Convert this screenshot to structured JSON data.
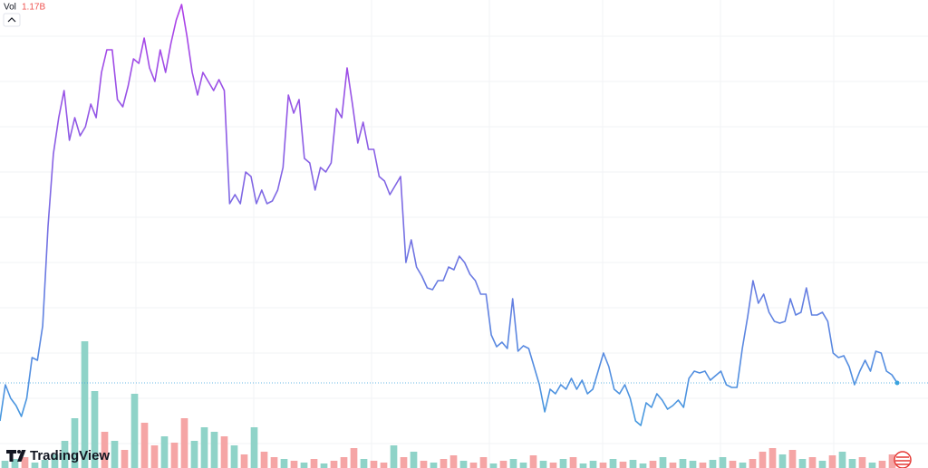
{
  "header": {
    "volume_label": "Vol",
    "volume_value": "1.17B",
    "watermark": "TradingView"
  },
  "chart_data": {
    "type": "line",
    "ylim": [
      0,
      517
    ],
    "colors": [
      "#b03ee8",
      "#3aa3de"
    ],
    "last_price_line_color": "#3aa3de",
    "values": [
      52,
      92,
      77,
      69,
      57,
      77,
      122,
      119,
      157,
      267,
      347,
      387,
      417,
      362,
      387,
      367,
      377,
      402,
      387,
      437,
      462,
      462,
      407,
      399,
      422,
      452,
      447,
      475,
      442,
      427,
      462,
      437,
      469,
      495,
      512,
      477,
      437,
      412,
      437,
      427,
      417,
      429,
      417,
      292,
      302,
      292,
      327,
      322,
      292,
      307,
      292,
      295,
      307,
      332,
      412,
      392,
      407,
      342,
      337,
      307,
      332,
      327,
      337,
      397,
      387,
      442,
      402,
      359,
      382,
      352,
      352,
      322,
      317,
      302,
      312,
      322,
      227,
      252,
      222,
      212,
      199,
      197,
      207,
      207,
      222,
      219,
      234,
      227,
      214,
      207,
      192,
      192,
      147,
      134,
      139,
      132,
      187,
      129,
      135,
      132,
      112,
      92,
      62,
      87,
      82,
      92,
      87,
      99,
      87,
      97,
      82,
      87,
      107,
      127,
      112,
      87,
      82,
      92,
      77,
      52,
      47,
      72,
      67,
      82,
      75,
      65,
      69,
      75,
      67,
      99,
      107,
      105,
      107,
      97,
      102,
      107,
      92,
      89,
      89,
      132,
      167,
      207,
      182,
      192,
      172,
      162,
      160,
      162,
      187,
      169,
      172,
      199,
      169,
      169,
      172,
      162,
      127,
      122,
      124,
      112,
      92,
      107,
      119,
      107,
      129,
      127,
      107,
      103,
      94
    ],
    "volume": {
      "ylim": [
        0,
        517
      ],
      "values": [
        8,
        10,
        12,
        6,
        9,
        15,
        30,
        55,
        140,
        85,
        40,
        30,
        20,
        82,
        50,
        25,
        35,
        28,
        55,
        30,
        45,
        40,
        35,
        25,
        15,
        45,
        18,
        12,
        10,
        8,
        6,
        10,
        5,
        8,
        12,
        22,
        10,
        8,
        6,
        25,
        12,
        18,
        8,
        6,
        10,
        14,
        8,
        6,
        12,
        5,
        8,
        10,
        6,
        14,
        8,
        6,
        10,
        12,
        5,
        8,
        6,
        10,
        7,
        9,
        5,
        8,
        12,
        6,
        10,
        8,
        6,
        9,
        12,
        8,
        6,
        10,
        18,
        22,
        15,
        20,
        10,
        12,
        8,
        14,
        18,
        10,
        12,
        6,
        8,
        15
      ],
      "colors": [
        "#8fd3c8",
        "#8fd3c8",
        "#f5a5a5",
        "#8fd3c8",
        "#8fd3c8",
        "#8fd3c8",
        "#8fd3c8",
        "#8fd3c8",
        "#8fd3c8",
        "#8fd3c8",
        "#f5a5a5",
        "#8fd3c8",
        "#f5a5a5",
        "#8fd3c8",
        "#f5a5a5",
        "#f5a5a5",
        "#8fd3c8",
        "#f5a5a5",
        "#f5a5a5",
        "#8fd3c8",
        "#8fd3c8",
        "#8fd3c8",
        "#f5a5a5",
        "#8fd3c8",
        "#f5a5a5",
        "#8fd3c8",
        "#f5a5a5",
        "#f5a5a5",
        "#8fd3c8",
        "#f5a5a5",
        "#8fd3c8",
        "#f5a5a5",
        "#8fd3c8",
        "#f5a5a5",
        "#f5a5a5",
        "#f5a5a5",
        "#8fd3c8",
        "#f5a5a5",
        "#f5a5a5",
        "#8fd3c8",
        "#f5a5a5",
        "#8fd3c8",
        "#f5a5a5",
        "#8fd3c8",
        "#f5a5a5",
        "#f5a5a5",
        "#8fd3c8",
        "#f5a5a5",
        "#f5a5a5",
        "#8fd3c8",
        "#f5a5a5",
        "#8fd3c8",
        "#8fd3c8",
        "#f5a5a5",
        "#8fd3c8",
        "#f5a5a5",
        "#8fd3c8",
        "#f5a5a5",
        "#8fd3c8",
        "#8fd3c8",
        "#f5a5a5",
        "#8fd3c8",
        "#f5a5a5",
        "#8fd3c8",
        "#8fd3c8",
        "#f5a5a5",
        "#8fd3c8",
        "#f5a5a5",
        "#8fd3c8",
        "#8fd3c8",
        "#f5a5a5",
        "#8fd3c8",
        "#8fd3c8",
        "#f5a5a5",
        "#8fd3c8",
        "#f5a5a5",
        "#f5a5a5",
        "#f5a5a5",
        "#8fd3c8",
        "#f5a5a5",
        "#8fd3c8",
        "#f5a5a5",
        "#8fd3c8",
        "#f5a5a5",
        "#8fd3c8",
        "#8fd3c8",
        "#f5a5a5",
        "#8fd3c8",
        "#f5a5a5",
        "#f5a5a5"
      ]
    }
  }
}
